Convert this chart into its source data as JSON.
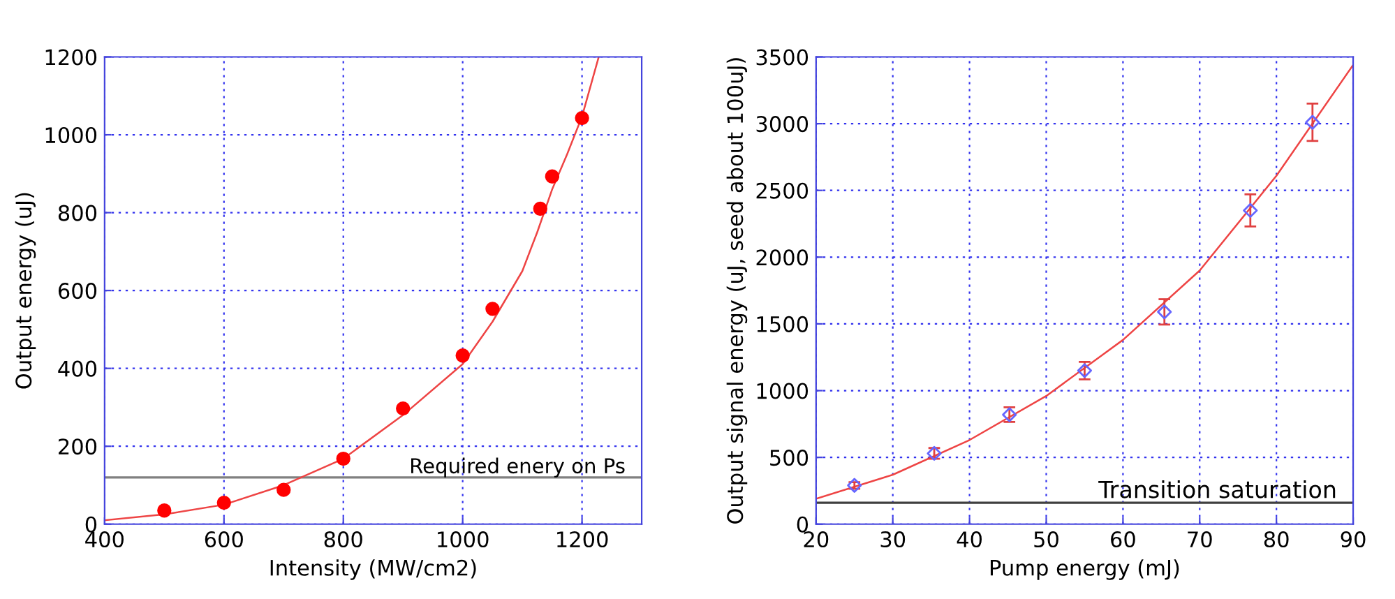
{
  "chart_data": [
    {
      "type": "scatter",
      "xlabel": "Intensity (MW/cm2)",
      "ylabel": "Output energy (uJ)",
      "xlim": [
        400,
        1300
      ],
      "ylim": [
        0,
        1200
      ],
      "xticks": [
        400,
        600,
        800,
        1000,
        1200
      ],
      "yticks": [
        0,
        200,
        400,
        600,
        800,
        1000,
        1200
      ],
      "grid": true,
      "series": [
        {
          "color": "#ff0000",
          "marker": "circle",
          "x": [
            500,
            600,
            700,
            800,
            900,
            1000,
            1050,
            1130,
            1150,
            1200
          ],
          "values": [
            35,
            55,
            88,
            168,
            297,
            433,
            553,
            810,
            893,
            1043
          ]
        },
        {
          "type": "line",
          "color": "#ee4444",
          "marker": "none",
          "x": [
            400,
            500,
            600,
            700,
            800,
            900,
            1000,
            1050,
            1100,
            1125,
            1150,
            1175,
            1200,
            1228
          ],
          "values": [
            10,
            25,
            50,
            100,
            168,
            280,
            411,
            520,
            650,
            750,
            860,
            950,
            1047,
            1200
          ]
        }
      ],
      "ref_lines": [
        {
          "axis": "y",
          "value": 120,
          "label": "Required enery on Ps",
          "color": "#808080"
        }
      ]
    },
    {
      "type": "scatter",
      "xlabel": "Pump energy (mJ)",
      "ylabel": "Output signal energy (uJ, seed about 100uJ)",
      "xlim": [
        20,
        90
      ],
      "ylim": [
        0,
        3500
      ],
      "xticks": [
        20,
        30,
        40,
        50,
        60,
        70,
        80,
        90
      ],
      "yticks": [
        0,
        500,
        1000,
        1500,
        2000,
        2500,
        3000,
        3500
      ],
      "grid": true,
      "series": [
        {
          "color": "#6666ff",
          "marker": "diamond",
          "x": [
            25,
            35.4,
            45.2,
            55,
            65.4,
            76.6,
            84.7
          ],
          "values": [
            290,
            530,
            820,
            1150,
            1590,
            2350,
            3010
          ],
          "errors": [
            25,
            40,
            55,
            65,
            95,
            120,
            140
          ]
        },
        {
          "type": "line",
          "color": "#ee4444",
          "marker": "none",
          "x": [
            20,
            30,
            40,
            50,
            60,
            70,
            80,
            90
          ],
          "values": [
            190,
            370,
            630,
            960,
            1380,
            1900,
            2610,
            3440
          ]
        }
      ],
      "ref_lines": [
        {
          "axis": "y",
          "value": 160,
          "label": "Transition saturation",
          "color": "#404040"
        }
      ]
    }
  ]
}
